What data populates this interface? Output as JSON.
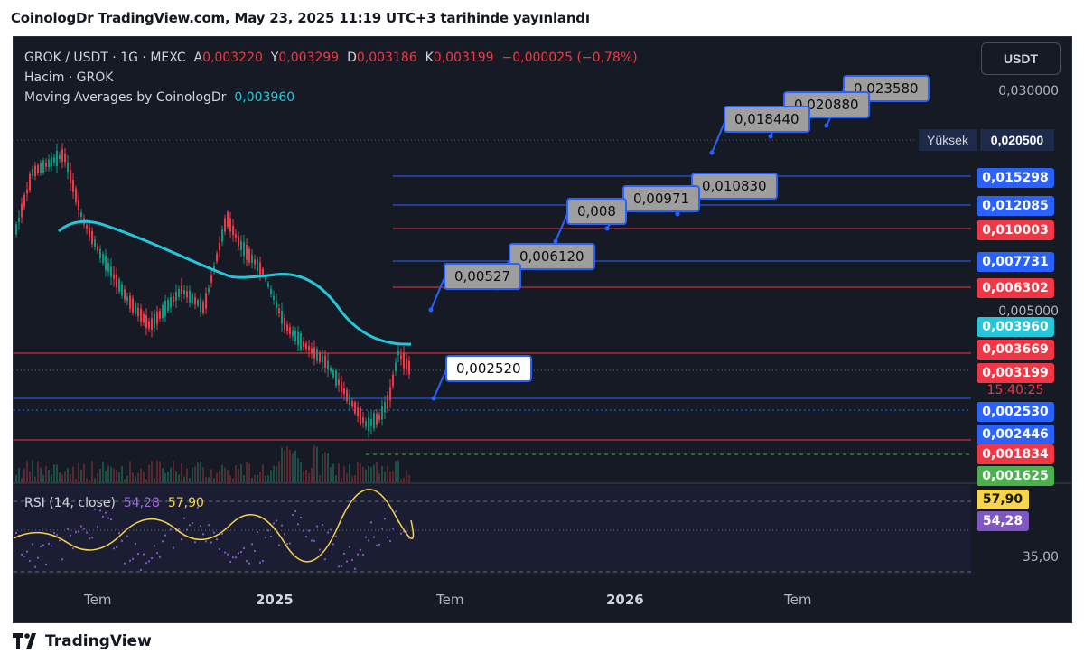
{
  "header": {
    "title": "CoinologDr TradingView.com, May 23, 2025 11:19 UTC+3 tarihinde yayınlandı"
  },
  "legend": {
    "symbol": "GROK / USDT · 1G · MEXC",
    "o_label": "A",
    "o_value": "0,003220",
    "h_label": "Y",
    "h_value": "0,003299",
    "l_label": "D",
    "l_value": "0,003186",
    "c_label": "K",
    "c_value": "0,003199",
    "change": "−0,000025 (−0,78%)",
    "volume": "Hacim · GROK",
    "ma_label": "Moving Averages by CoinologDr",
    "ma_value": "0,003960"
  },
  "rsi": {
    "label": "RSI (14, close)",
    "value": "54,28",
    "ma_value": "57,90"
  },
  "currency_button": "USDT",
  "axis": {
    "p1": "0,030000",
    "p2": "0,005000",
    "rsi_35": "35,00",
    "rsi_top": "57,90"
  },
  "high_tag": {
    "label": "Yüksek",
    "value": "0,020500"
  },
  "price_tags": [
    {
      "value": "0,015298",
      "color": "#2962ff"
    },
    {
      "value": "0,012085",
      "color": "#2962ff"
    },
    {
      "value": "0,010003",
      "color": "#f23645"
    },
    {
      "value": "0,007731",
      "color": "#2962ff"
    },
    {
      "value": "0,006302",
      "color": "#f23645"
    },
    {
      "value": "0,003960",
      "color": "#26c6da"
    },
    {
      "value": "0,003669",
      "color": "#f23645"
    },
    {
      "value": "0,003199",
      "color": "#f23645"
    },
    {
      "value": "15:40:25",
      "color": "#f23645"
    },
    {
      "value": "0,002530",
      "color": "#2962ff"
    },
    {
      "value": "0,002446",
      "color": "#2962ff"
    },
    {
      "value": "0,001834",
      "color": "#f23645"
    },
    {
      "value": "0,001625",
      "color": "#4caf50"
    }
  ],
  "rsi_tags": [
    {
      "value": "57,90",
      "color": "#f7d54a"
    },
    {
      "value": "54,28",
      "color": "#7e57c2"
    }
  ],
  "callouts": [
    {
      "text": "0,023580"
    },
    {
      "text": "0,020880"
    },
    {
      "text": "0,018440"
    },
    {
      "text": "0,010830"
    },
    {
      "text": "0,00971"
    },
    {
      "text": "0,008"
    },
    {
      "text": "0,006120"
    },
    {
      "text": "0,00527"
    },
    {
      "text": "0,002520"
    }
  ],
  "time_axis": [
    "Tem",
    "2025",
    "Tem",
    "2026",
    "Tem"
  ],
  "footer": {
    "brand": "TradingView"
  }
}
